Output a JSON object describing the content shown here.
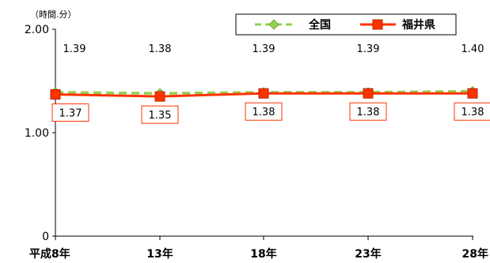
{
  "chart_data": {
    "type": "line",
    "unit_label": "（時間.分）",
    "categories": [
      "平成8年",
      "13年",
      "18年",
      "23年",
      "28年"
    ],
    "y_ticks": [
      "0",
      "1.00",
      "2.00"
    ],
    "ylim": [
      0,
      2.0
    ],
    "grid": false,
    "legend_position": "top-right",
    "series": [
      {
        "name": "全国",
        "values": [
          1.39,
          1.38,
          1.39,
          1.39,
          1.4
        ],
        "labels": [
          "1.39",
          "1.38",
          "1.39",
          "1.39",
          "1.40"
        ],
        "color": "#92d050",
        "style": "dashed",
        "marker": "diamond"
      },
      {
        "name": "福井県",
        "values": [
          1.37,
          1.35,
          1.38,
          1.38,
          1.38
        ],
        "labels": [
          "1.37",
          "1.35",
          "1.38",
          "1.38",
          "1.38"
        ],
        "color": "#ff3300",
        "style": "solid",
        "marker": "square"
      }
    ]
  }
}
